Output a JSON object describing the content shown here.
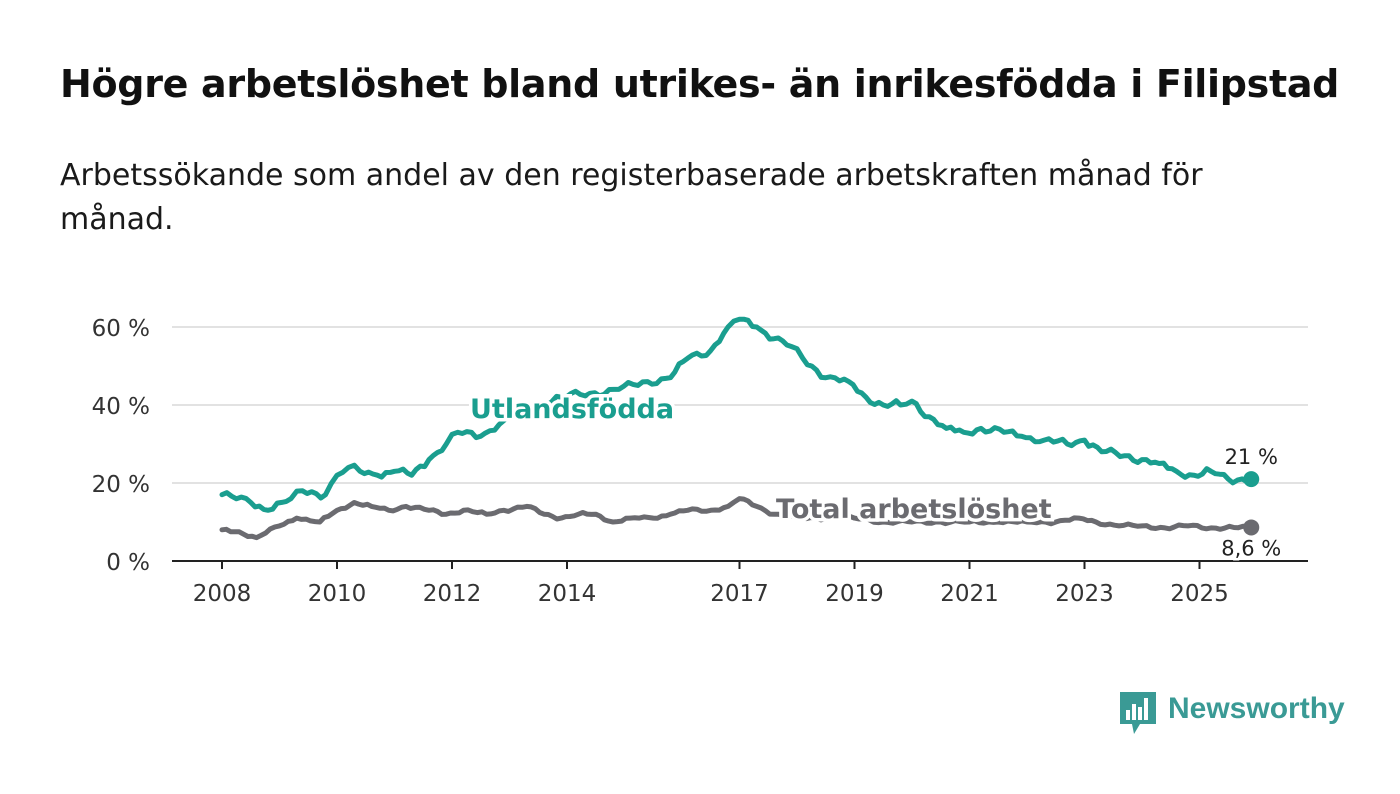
{
  "title": "Högre arbetslöshet bland utrikes- än inrikesfödda i Filipstad",
  "subtitle": "Arbetssökande som andel av den registerbaserade arbetskraften månad för månad.",
  "brand": {
    "name": "Newsworthy",
    "color": "#3a9a95"
  },
  "chart_data": {
    "type": "line",
    "x_start": 2008.0,
    "x_step_months": 1,
    "x_ticks": [
      2008,
      2010,
      2012,
      2014,
      2017,
      2019,
      2021,
      2023,
      2025
    ],
    "x_tick_labels": [
      "2008",
      "2010",
      "2012",
      "2014",
      "2017",
      "2019",
      "2021",
      "2023",
      "2025"
    ],
    "y_ticks": [
      0,
      20,
      40,
      60
    ],
    "y_tick_labels": [
      "0 %",
      "20 %",
      "40 %",
      "60 %"
    ],
    "ylim": [
      0,
      60
    ],
    "grid": true,
    "series": [
      {
        "name": "Utlandsfödda",
        "label": "Utlandsfödda",
        "color": "#1a9e8f",
        "end_label": "21 %",
        "anchors": [
          [
            2008.0,
            17
          ],
          [
            2008.5,
            15
          ],
          [
            2008.8,
            13
          ],
          [
            2009.2,
            16
          ],
          [
            2009.4,
            18
          ],
          [
            2009.8,
            17
          ],
          [
            2010.0,
            22
          ],
          [
            2010.2,
            24
          ],
          [
            2010.4,
            23
          ],
          [
            2010.7,
            22
          ],
          [
            2011.0,
            23
          ],
          [
            2011.3,
            22
          ],
          [
            2011.6,
            26
          ],
          [
            2011.9,
            30
          ],
          [
            2012.1,
            33
          ],
          [
            2012.5,
            32
          ],
          [
            2012.9,
            36
          ],
          [
            2013.4,
            40
          ],
          [
            2013.9,
            42
          ],
          [
            2014.4,
            43
          ],
          [
            2014.9,
            44
          ],
          [
            2015.4,
            46
          ],
          [
            2015.8,
            47
          ],
          [
            2016.1,
            52
          ],
          [
            2016.5,
            54
          ],
          [
            2016.8,
            60
          ],
          [
            2017.0,
            62
          ],
          [
            2017.3,
            60
          ],
          [
            2017.6,
            57
          ],
          [
            2017.9,
            55
          ],
          [
            2018.1,
            52
          ],
          [
            2018.5,
            47
          ],
          [
            2018.9,
            46
          ],
          [
            2019.2,
            42
          ],
          [
            2019.5,
            40
          ],
          [
            2019.8,
            40
          ],
          [
            2020.0,
            41
          ],
          [
            2020.3,
            37
          ],
          [
            2020.6,
            34
          ],
          [
            2020.9,
            33
          ],
          [
            2021.2,
            34
          ],
          [
            2021.6,
            33
          ],
          [
            2021.9,
            32
          ],
          [
            2022.3,
            31
          ],
          [
            2022.7,
            30
          ],
          [
            2023.0,
            31
          ],
          [
            2023.3,
            28
          ],
          [
            2023.7,
            27
          ],
          [
            2024.0,
            26
          ],
          [
            2024.3,
            25
          ],
          [
            2024.6,
            23
          ],
          [
            2024.9,
            22
          ],
          [
            2025.2,
            23
          ],
          [
            2025.5,
            21
          ],
          [
            2025.9,
            21
          ]
        ]
      },
      {
        "name": "Total arbetslöshet",
        "label": "Total arbetslöshet",
        "color": "#6b6b70",
        "end_label": "8,6 %",
        "anchors": [
          [
            2008.0,
            8
          ],
          [
            2008.3,
            7.5
          ],
          [
            2008.6,
            6
          ],
          [
            2009.0,
            9
          ],
          [
            2009.3,
            11
          ],
          [
            2009.7,
            10
          ],
          [
            2010.0,
            13
          ],
          [
            2010.3,
            15
          ],
          [
            2010.6,
            14
          ],
          [
            2010.9,
            13
          ],
          [
            2011.2,
            14
          ],
          [
            2011.6,
            13
          ],
          [
            2011.9,
            12
          ],
          [
            2012.2,
            13
          ],
          [
            2012.6,
            12
          ],
          [
            2012.9,
            13
          ],
          [
            2013.3,
            14
          ],
          [
            2013.6,
            12
          ],
          [
            2013.9,
            11
          ],
          [
            2014.2,
            12
          ],
          [
            2014.5,
            12
          ],
          [
            2014.8,
            10
          ],
          [
            2015.1,
            11
          ],
          [
            2015.5,
            11
          ],
          [
            2015.8,
            12
          ],
          [
            2016.1,
            13
          ],
          [
            2016.5,
            13
          ],
          [
            2016.8,
            14
          ],
          [
            2017.0,
            16
          ],
          [
            2017.3,
            14
          ],
          [
            2017.6,
            12
          ],
          [
            2018.0,
            11
          ],
          [
            2018.5,
            11
          ],
          [
            2019.0,
            11
          ],
          [
            2019.5,
            10
          ],
          [
            2020.0,
            10
          ],
          [
            2020.5,
            10
          ],
          [
            2021.0,
            10
          ],
          [
            2021.5,
            10
          ],
          [
            2022.0,
            10
          ],
          [
            2022.5,
            10
          ],
          [
            2022.9,
            11
          ],
          [
            2023.2,
            10
          ],
          [
            2023.6,
            9
          ],
          [
            2024.0,
            9
          ],
          [
            2024.4,
            8.5
          ],
          [
            2024.8,
            9
          ],
          [
            2025.2,
            8.5
          ],
          [
            2025.6,
            8.6
          ],
          [
            2025.9,
            8.6
          ]
        ]
      }
    ]
  }
}
